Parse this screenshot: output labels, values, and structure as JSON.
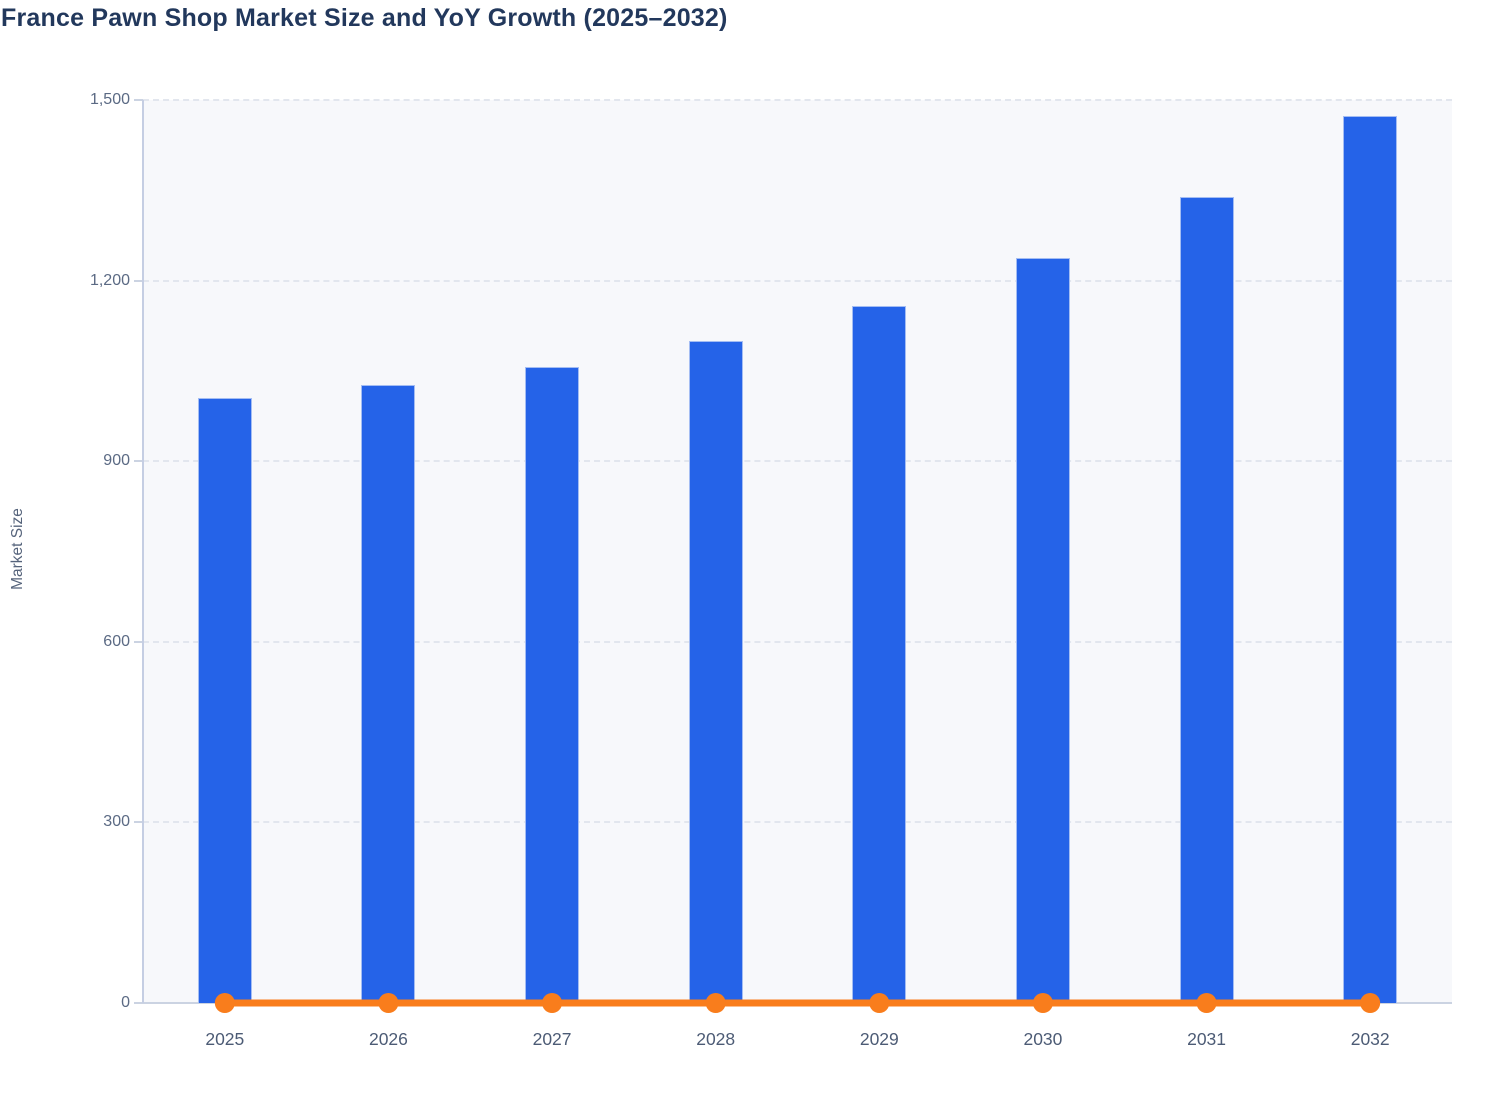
{
  "chart_data": {
    "type": "bar",
    "title": "France Pawn Shop Market Size and YoY Growth (2025–2032)",
    "xlabel": "",
    "ylabel": "Market Size",
    "categories": [
      "2025",
      "2026",
      "2027",
      "2028",
      "2029",
      "2030",
      "2031",
      "2032"
    ],
    "series": [
      {
        "name": "Market Size",
        "type": "bar",
        "color": "#2563e8",
        "values": [
          1005,
          1027,
          1057,
          1100,
          1158,
          1237,
          1339,
          1474
        ]
      },
      {
        "name": "YoY Growth",
        "type": "line",
        "color": "#f97d1c",
        "values": [
          0,
          0,
          0,
          0,
          0,
          0,
          0,
          0
        ]
      }
    ],
    "ylim": [
      0,
      1500
    ],
    "yticks": [
      0,
      300,
      600,
      900,
      1200,
      1500
    ],
    "ytick_labels": [
      "0",
      "300",
      "600",
      "900",
      "1,200",
      "1,500"
    ],
    "grid": "dashed horizontal gridlines",
    "legend": "none"
  },
  "palette": {
    "title_text": "#22385c",
    "axis_label_text": "#5b6a84",
    "plot_background": "#f7f8fb",
    "gridline": "#e2e6ee",
    "axis_line": "#c5cee3"
  }
}
